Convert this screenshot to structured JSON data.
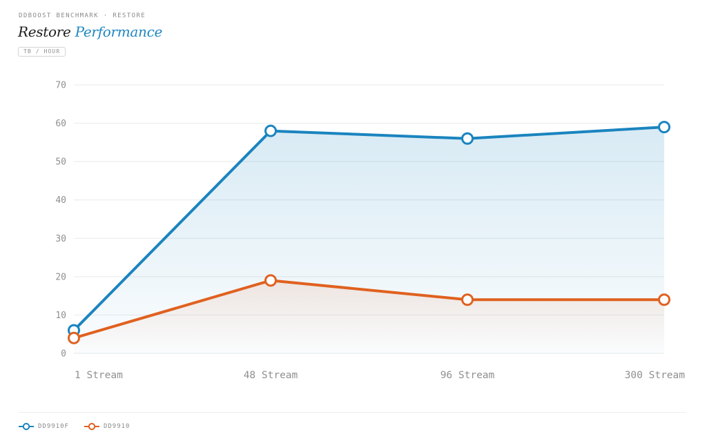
{
  "header": {
    "eyebrow": "DDBOOST BENCHMARK · RESTORE",
    "title_main": "Restore",
    "title_accent": "Performance",
    "unit_badge": "TB / HOUR"
  },
  "colors": {
    "dd9910f": "#1a84bf",
    "dd9910": "#e0611f",
    "grid": "#e6e9ec",
    "tick": "#8f8f8f"
  },
  "chart_data": {
    "type": "area",
    "categories": [
      "1 Stream",
      "48 Stream",
      "96 Stream",
      "300 Stream"
    ],
    "y_ticks": [
      "0",
      "10",
      "20",
      "30",
      "40",
      "50",
      "60",
      "70"
    ],
    "ylim": [
      0,
      70
    ],
    "grid": true,
    "legend_position": "bottom-left",
    "series": [
      {
        "name": "DD9910F",
        "values": [
          6,
          58,
          56,
          59
        ]
      },
      {
        "name": "DD9910",
        "values": [
          4,
          19,
          14,
          14
        ]
      }
    ]
  }
}
